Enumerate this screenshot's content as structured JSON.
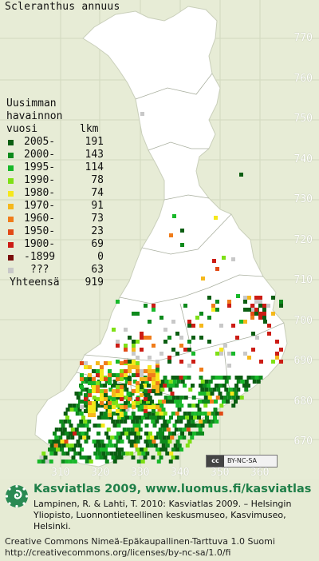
{
  "species": "Scleranthus annuus",
  "legend": {
    "header_line1": "Uusimman",
    "header_line2": "havainnon",
    "header_col_left": "vuosi",
    "header_col_right": "lkm",
    "rows": [
      {
        "label": "2005-",
        "count": "191",
        "color": "#0b5e12"
      },
      {
        "label": "2000-",
        "count": "143",
        "color": "#0d8a1c"
      },
      {
        "label": "1995-",
        "count": "114",
        "color": "#18b82a"
      },
      {
        "label": "1990-",
        "count": "78",
        "color": "#7ee015"
      },
      {
        "label": "1980-",
        "count": "74",
        "color": "#f5e81b"
      },
      {
        "label": "1970-",
        "count": "91",
        "color": "#f5b81b"
      },
      {
        "label": "1960-",
        "count": "73",
        "color": "#f07c1a"
      },
      {
        "label": "1950-",
        "count": "23",
        "color": "#e24a16"
      },
      {
        "label": "1900-",
        "count": "69",
        "color": "#cc1c14"
      },
      {
        "label": "-1899",
        "count": "0",
        "color": "#7a0e0b"
      },
      {
        "label": "???",
        "count": "63",
        "color": "#c8c8c8"
      }
    ],
    "total_label": "Yhteensä",
    "total_count": "919"
  },
  "y_axis": [
    "770",
    "760",
    "750",
    "740",
    "730",
    "720",
    "710",
    "700",
    "690",
    "680",
    "670"
  ],
  "x_axis": [
    "310",
    "320",
    "330",
    "340",
    "350",
    "360"
  ],
  "license_badge": "BY-NC-SA",
  "license_badge_logo": "cc",
  "footer": {
    "title": "Kasviatlas 2009, www.luomus.fi/kasviatlas",
    "citation": "Lampinen, R. & Lahti, T. 2010: Kasviatlas 2009. – Helsingin Yliopisto, Luonnontieteellinen keskusmuseo, Kasvimuseo, Helsinki.",
    "license_line1": "Creative Commons Nimeä-Epäkaupallinen-Tarttuva 1.0 Suomi",
    "license_line2": "http://creativecommons.org/licenses/by-nc-sa/1.0/fi"
  },
  "colors": {
    "land": "#ffffff",
    "background": "#e6ebd4",
    "title_green": "#1f7f48"
  }
}
